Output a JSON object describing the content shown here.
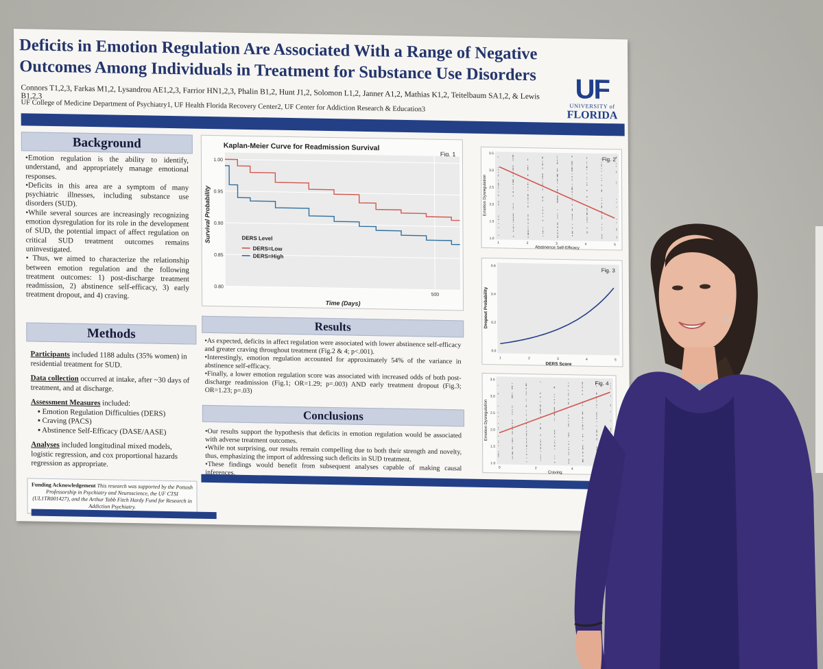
{
  "poster": {
    "title": "Deficits in Emotion Regulation Are Associated With a Range of Negative Outcomes Among Individuals in Treatment for Substance Use Disorders",
    "authors": "Connors T1,2,3, Farkas M1,2, Lysandrou AE1,2,3, Farrior HN1,2,3, Phalin B1,2, Hunt J1,2, Solomon L1,2, Janner A1,2, Mathias K1,2, Teitelbaum SA1,2, & Lewis B1,2,3",
    "affiliations": "UF College of Medicine Department of Psychiatry1, UF Health Florida Recovery Center2, UF Center for Addiction Research & Education3",
    "logo": {
      "mark": "UF",
      "university": "UNIVERSITY of",
      "state": "FLORIDA"
    },
    "background": {
      "heading": "Background",
      "paragraphs": [
        "•Emotion regulation is the ability to identify, understand, and appropriately manage emotional responses.",
        "•Deficits in this area are a symptom of many psychiatric illnesses, including substance use disorders (SUD).",
        "•While several sources are increasingly recognizing emotion dysregulation for its role in the development of SUD, the potential impact of affect regulation on critical SUD treatment outcomes remains uninvestigated.",
        "• Thus, we aimed to characterize the relationship between emotion regulation and the following treatment outcomes: 1) post-discharge treatment readmission, 2) abstinence self-efficacy, 3) early treatment dropout, and 4) craving."
      ]
    },
    "methods": {
      "heading": "Methods",
      "participants_label": "Participants",
      "participants_text": " included 1188 adults (35% women) in residential treatment for SUD.",
      "data_label": "Data collection",
      "data_text": " occurred at intake, after ~30 days of treatment, and at discharge.",
      "measures_label": "Assessment Measures",
      "measures_text": " included:",
      "measures": [
        "▪ Emotion Regulation Difficulties (DERS)",
        "▪ Craving (PACS)",
        "▪ Abstinence Self-Efficacy (DASE/AASE)"
      ],
      "analyses_label": "Analyses",
      "analyses_text": " included longitudinal mixed models, logistic regression, and cox proportional hazards regression as appropriate."
    },
    "funding": {
      "label": "Funding Acknowledgement",
      "text": " This research was supported by the Pottash Professorship in Psychiatry and Neuroscience, the UF CTSI (UL1TR001427), and the Arthur Tabb Fitch Hardy Fund for Research in Addiction Psychiatry."
    },
    "results": {
      "heading": "Results",
      "paragraphs": [
        "•As expected, deficits in affect regulation were associated with lower abstinence self-efficacy and greater craving throughout treatment (Fig.2 & 4; p<.001).",
        "•Interestingly, emotion regulation accounted for approximately 54% of the variance in abstinence self-efficacy.",
        "•Finally, a lower emotion regulation score was associated with increased odds of both post-discharge readmission (Fig.1; OR=1.29; p=.003) AND early treatment dropout (Fig.3; OR=1.23; p=.03)"
      ]
    },
    "conclusions": {
      "heading": "Conclusions",
      "paragraphs": [
        "•Our results support the hypothesis that deficits in emotion regulation would be associated with adverse treatment outcomes.",
        "•While not surprising, our results remain compelling due to both their strength and novelty, thus, emphasizing the import of addressing such deficits in SUD treatment.",
        "•These findings would benefit from subsequent analyses capable of making causal inferences."
      ]
    },
    "fig1": {
      "title": "Kaplan-Meier Curve for Readmission Survival",
      "tag": "Fig. 1",
      "xlabel": "Time (Days)",
      "ylabel": "Survival Probability",
      "yticks": [
        "1.00",
        "0.95",
        "0.90",
        "0.85",
        "0.80"
      ],
      "xticks": [
        "500"
      ],
      "legend_title": "DERS Level",
      "legend": [
        "DERS=Low",
        "DERS=High"
      ]
    },
    "fig2": {
      "tag": "Fig. 2",
      "xlabel": "Abstinence Self-Efficacy",
      "ylabel": "Emotion Dysregulation",
      "xticks": [
        "1",
        "2",
        "3",
        "4",
        "5"
      ],
      "yticks": [
        "3.5",
        "3.0",
        "2.5",
        "2.0",
        "1.5",
        "1.0"
      ]
    },
    "fig3": {
      "tag": "Fig. 3",
      "xlabel": "DERS Score",
      "ylabel": "Dropout Probability",
      "xticks": [
        "1",
        "2",
        "3",
        "4",
        "5"
      ],
      "yticks": [
        "0.6",
        "0.4",
        "0.2",
        "0.0"
      ]
    },
    "fig4": {
      "tag": "Fig. 4",
      "xlabel": "Craving",
      "ylabel": "Emotion Dysregulation",
      "xticks": [
        "0",
        "2",
        "4"
      ],
      "yticks": [
        "3.5",
        "3.0",
        "2.5",
        "2.0",
        "1.5",
        "1.0"
      ]
    }
  },
  "colors": {
    "navy": "#233f86",
    "title": "#24356b",
    "red": "#d2564f",
    "blue": "#2f6f9e",
    "cardigan": "#3a2e78"
  },
  "chart_data": [
    {
      "type": "line",
      "title": "Kaplan-Meier Curve for Readmission Survival",
      "xlabel": "Time (Days)",
      "ylabel": "Survival Probability",
      "ylim": [
        0.8,
        1.0
      ],
      "series": [
        {
          "name": "DERS=Low",
          "x": [
            0,
            30,
            60,
            120,
            200,
            260,
            320,
            360,
            420,
            480,
            540
          ],
          "values": [
            1.0,
            0.99,
            0.98,
            0.965,
            0.955,
            0.948,
            0.935,
            0.925,
            0.92,
            0.915,
            0.91
          ]
        },
        {
          "name": "DERS=High",
          "x": [
            0,
            10,
            30,
            60,
            120,
            200,
            260,
            320,
            360,
            420,
            480,
            540
          ],
          "values": [
            0.99,
            0.96,
            0.94,
            0.935,
            0.925,
            0.913,
            0.905,
            0.898,
            0.892,
            0.885,
            0.878,
            0.872
          ]
        }
      ]
    }
  ]
}
